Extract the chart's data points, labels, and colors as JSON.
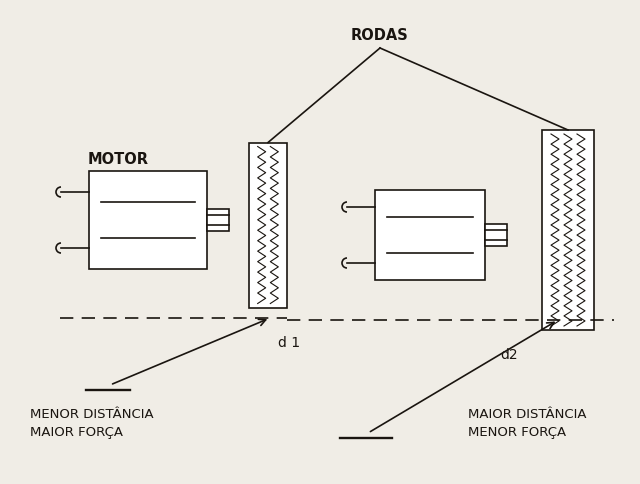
{
  "bg_color": "#f0ede6",
  "line_color": "#1a1510",
  "title": "RODAS",
  "motor_label": "MOTOR",
  "d1_label": "d 1",
  "d2_label": "d2",
  "label_left_line1": "MENOR DISTÂNCIA",
  "label_left_line2": "MAIOR FORÇA",
  "label_right_line1": "MAIOR DISTÂNCIA",
  "label_right_line2": "MENOR FORÇA"
}
